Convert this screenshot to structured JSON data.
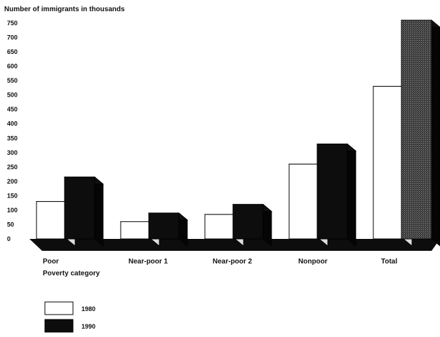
{
  "chart_data": {
    "type": "bar",
    "title": "Number of immigrants in thousands",
    "xlabel": "Poverty category",
    "ylabel": "",
    "ylim": [
      0,
      750
    ],
    "yticks": [
      0,
      50,
      100,
      150,
      200,
      250,
      300,
      350,
      400,
      450,
      500,
      550,
      600,
      650,
      700,
      750
    ],
    "categories": [
      "Poor",
      "Near-poor 1",
      "Near-poor 2",
      "Nonpoor",
      "Total"
    ],
    "series": [
      {
        "name": "1980",
        "values": [
          130,
          60,
          85,
          260,
          530
        ]
      },
      {
        "name": "1990",
        "values": [
          215,
          90,
          120,
          330,
          760
        ]
      }
    ],
    "grid": false,
    "legend": "bottom-left",
    "colors": {
      "series_1980": "#ffffff",
      "series_1990": "#0d0d0d",
      "total_1990": "#3c3c3c",
      "floor": "#0d0d0d",
      "axis": "#111111"
    }
  }
}
